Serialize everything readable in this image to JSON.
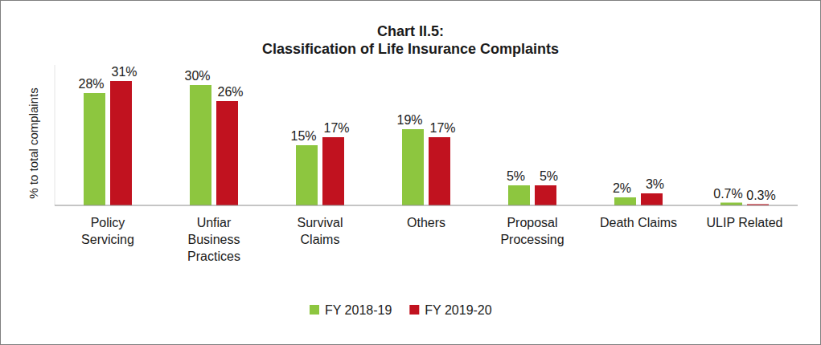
{
  "chart_data": {
    "type": "bar",
    "title": "Chart II.5:\nClassification of Life Insurance Complaints",
    "y_label": "% to total complaints",
    "categories": [
      "Policy\nServicing",
      "Unfiar\nBusiness\nPractices",
      "Survival\nClaims",
      "Others",
      "Proposal\nProcessing",
      "Death Claims",
      "ULIP Related"
    ],
    "series": [
      {
        "name": "FY 2018-19",
        "color": "#8dc63f",
        "values": [
          28,
          30,
          15,
          19,
          5,
          2,
          0.7
        ],
        "value_labels": [
          "28%",
          "30%",
          "15%",
          "19%",
          "5%",
          "2%",
          "0.7%"
        ]
      },
      {
        "name": "FY 2019-20",
        "color": "#c1121f",
        "values": [
          31,
          26,
          17,
          17,
          5,
          3,
          0.3
        ],
        "value_labels": [
          "31%",
          "26%",
          "17%",
          "17%",
          "5%",
          "3%",
          "0.3%"
        ]
      }
    ],
    "ylim": [
      0,
      35
    ],
    "tick_labels": "x",
    "grid": false,
    "data_labels": true,
    "legend": "bottom"
  }
}
